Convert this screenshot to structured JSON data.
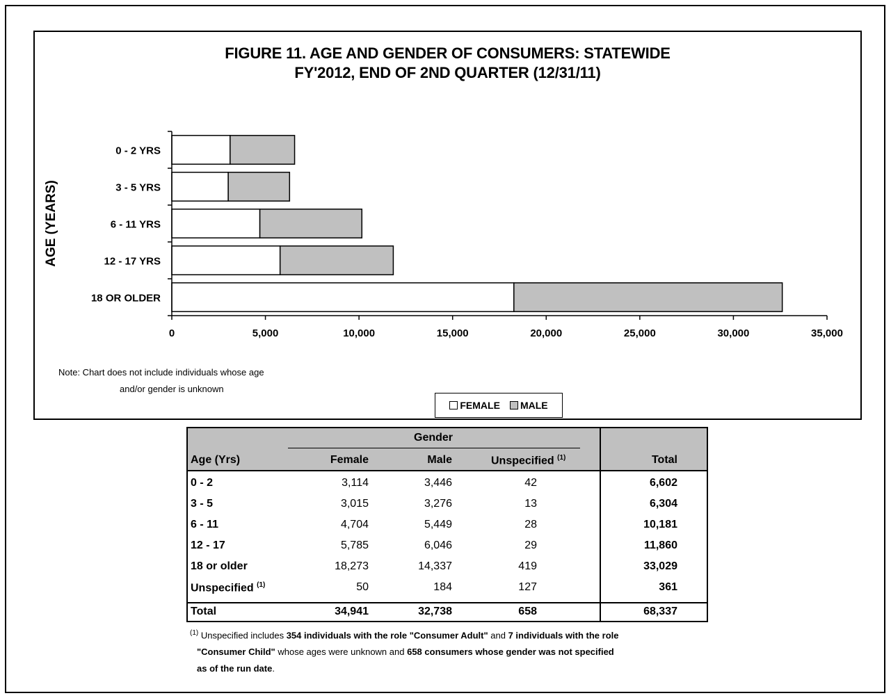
{
  "chart_data": {
    "type": "bar",
    "orientation": "horizontal",
    "stacked": true,
    "title": "FIGURE 11. AGE AND GENDER OF CONSUMERS: STATEWIDE",
    "subtitle": "FY'2012, END OF 2ND QUARTER (12/31/11)",
    "ylabel": "AGE (YEARS)",
    "xlabel": "",
    "categories": [
      "0 - 2 YRS",
      "3 - 5 YRS",
      "6 - 11 YRS",
      "12 - 17 YRS",
      "18 OR OLDER"
    ],
    "series": [
      {
        "name": "FEMALE",
        "color": "#ffffff",
        "values": [
          3114,
          3015,
          4704,
          5785,
          18273
        ]
      },
      {
        "name": "MALE",
        "color": "#c0c0c0",
        "values": [
          3446,
          3276,
          5449,
          6046,
          14337
        ]
      }
    ],
    "xlim": [
      0,
      35000
    ],
    "xticks": [
      0,
      5000,
      10000,
      15000,
      20000,
      25000,
      30000,
      35000
    ],
    "xtick_labels": [
      "0",
      "5,000",
      "10,000",
      "15,000",
      "20,000",
      "25,000",
      "30,000",
      "35,000"
    ],
    "legend_position": "bottom",
    "grid": false
  },
  "note": {
    "line1": "Note: Chart does not include individuals whose age",
    "line2": "and/or gender is unknown"
  },
  "table": {
    "gender_header": "Gender",
    "columns": {
      "age": "Age (Yrs)",
      "female": "Female",
      "male": "Male",
      "unspecified": "Unspecified",
      "unspecified_sup": "(1)",
      "total": "Total"
    },
    "rows": [
      {
        "age": "0 - 2",
        "female": "3,114",
        "male": "3,446",
        "unspecified": "42",
        "total": "6,602"
      },
      {
        "age": "3 - 5",
        "female": "3,015",
        "male": "3,276",
        "unspecified": "13",
        "total": "6,304"
      },
      {
        "age": "6 - 11",
        "female": "4,704",
        "male": "5,449",
        "unspecified": "28",
        "total": "10,181"
      },
      {
        "age": "12 - 17",
        "female": "5,785",
        "male": "6,046",
        "unspecified": "29",
        "total": "11,860"
      },
      {
        "age": "18 or older",
        "female": "18,273",
        "male": "14,337",
        "unspecified": "419",
        "total": "33,029"
      },
      {
        "age": "Unspecified",
        "age_sup": "(1)",
        "female": "50",
        "male": "184",
        "unspecified": "127",
        "total": "361"
      }
    ],
    "total_row": {
      "age": "Total",
      "female": "34,941",
      "male": "32,738",
      "unspecified": "658",
      "total": "68,337"
    }
  },
  "footnote": {
    "marker": "(1)",
    "p1": " Unspecified includes ",
    "b1": "354 individuals with the role \"Consumer Adult\"",
    "p2": " and ",
    "b2": "7 individuals with the role",
    "b3": "\"Consumer Child\"",
    "p3": " whose ages were unknown and ",
    "b4": "658 consumers whose gender was not specified",
    "b5": "as of the run date",
    "p4": "."
  }
}
